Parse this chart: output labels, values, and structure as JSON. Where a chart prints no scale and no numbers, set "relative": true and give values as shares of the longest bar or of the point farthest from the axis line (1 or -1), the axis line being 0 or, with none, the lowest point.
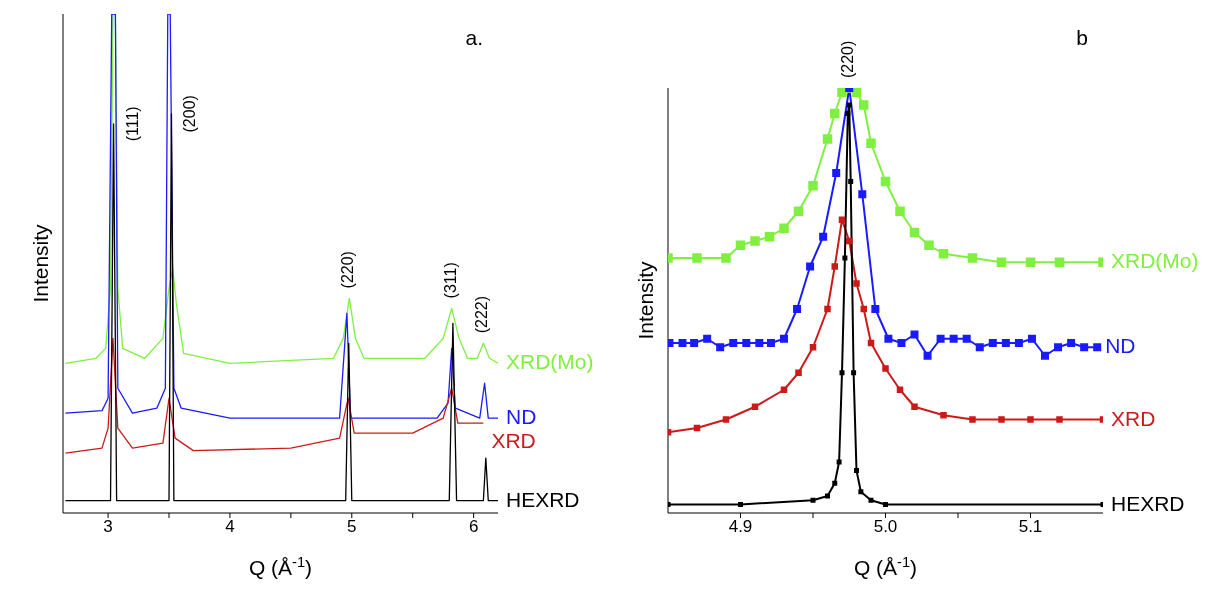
{
  "chart_data": [
    {
      "type": "line",
      "relative": true,
      "marker": "none",
      "xlabel": "Q  (Å$^{-1}$)",
      "ylabel": "Intensity",
      "xlim": [
        2.63,
        6.2
      ],
      "xticks": [
        3,
        {
          "value": 3.5,
          "label": null
        },
        4,
        {
          "value": 4.5,
          "label": null
        },
        5,
        {
          "value": 5.5,
          "label": null
        },
        6
      ],
      "annotations": [
        "a.",
        {
          "text": "(111)",
          "x": 3.045,
          "y": 0.78
        },
        {
          "text": "(200)",
          "x": 3.52,
          "y": 0.8
        },
        {
          "text": "(220)",
          "x": 4.98,
          "y": 0.43
        },
        {
          "text": "(311)",
          "x": 5.82,
          "y": 0.41
        },
        {
          "text": "(222)",
          "x": 6.08,
          "y": 0.34
        }
      ],
      "series": [
        {
          "name": "XRD(Mo)",
          "color": "#80f040",
          "x": [
            2.65,
            2.9,
            2.98,
            3.02,
            3.04,
            3.06,
            3.08,
            3.12,
            3.3,
            3.45,
            3.5,
            3.53,
            3.56,
            3.62,
            4.0,
            4.85,
            4.93,
            4.98,
            5.03,
            5.1,
            5.6,
            5.75,
            5.82,
            5.88,
            5.95,
            6.03,
            6.08,
            6.13,
            6.2
          ],
          "values": [
            0.3,
            0.31,
            0.33,
            0.45,
            1,
            1,
            0.45,
            0.33,
            0.31,
            0.35,
            0.45,
            0.49,
            0.42,
            0.32,
            0.3,
            0.31,
            0.35,
            0.43,
            0.35,
            0.31,
            0.31,
            0.35,
            0.41,
            0.35,
            0.31,
            0.31,
            0.34,
            0.31,
            0.3
          ]
        },
        {
          "name": "ND",
          "color": "#1a1aff",
          "x": [
            2.65,
            2.95,
            3.0,
            3.03,
            3.06,
            3.08,
            3.2,
            3.4,
            3.47,
            3.49,
            3.51,
            3.54,
            3.6,
            4.0,
            4.9,
            4.96,
            4.99,
            5.7,
            5.79,
            5.82,
            5.85,
            6.05,
            6.09,
            6.12,
            6.2
          ],
          "values": [
            0.2,
            0.205,
            0.23,
            1,
            1,
            0.25,
            0.2,
            0.21,
            0.25,
            1,
            1,
            0.25,
            0.21,
            0.19,
            0.19,
            0.4,
            0.19,
            0.19,
            0.22,
            0.33,
            0.21,
            0.19,
            0.26,
            0.19,
            0.19
          ]
        },
        {
          "name": "XRD",
          "color": "#cc1a1a",
          "x": [
            2.65,
            2.95,
            3.0,
            3.04,
            3.08,
            3.2,
            3.45,
            3.5,
            3.55,
            3.7,
            4.5,
            4.9,
            4.97,
            5.02,
            5.5,
            5.75,
            5.82,
            5.87,
            6.08
          ],
          "values": [
            0.12,
            0.13,
            0.17,
            0.35,
            0.17,
            0.13,
            0.14,
            0.23,
            0.15,
            0.125,
            0.13,
            0.15,
            0.23,
            0.16,
            0.16,
            0.19,
            0.25,
            0.18,
            0.18
          ]
        },
        {
          "name": "HEXRD",
          "color": "#000000",
          "x": [
            2.65,
            3.02,
            3.045,
            3.07,
            3.5,
            3.52,
            3.54,
            4.95,
            4.975,
            5.0,
            5.8,
            5.83,
            5.86,
            6.08,
            6.1,
            6.12,
            6.2
          ],
          "values": [
            0.025,
            0.025,
            0.78,
            0.025,
            0.025,
            0.8,
            0.025,
            0.025,
            0.34,
            0.025,
            0.025,
            0.38,
            0.025,
            0.025,
            0.11,
            0.025,
            0.025
          ]
        }
      ]
    },
    {
      "type": "line",
      "relative": true,
      "marker": "square",
      "xlabel": "Q  (Å$^{-1}$)",
      "ylabel": "Intensity",
      "xlim": [
        4.85,
        5.15
      ],
      "xticks": [
        4.9,
        {
          "value": 4.95,
          "label": null
        },
        {
          "value": 5,
          "label": "5.0"
        },
        {
          "value": 5.05,
          "label": null
        },
        5.1
      ],
      "annotations": [
        "b",
        {
          "text": "(220)",
          "x": 4.975,
          "y": 1
        }
      ],
      "series": [
        {
          "name": "XRD(Mo)",
          "color": "#80f040",
          "x": [
            4.85,
            4.87,
            4.89,
            4.9,
            4.91,
            4.92,
            4.93,
            4.94,
            4.95,
            4.96,
            4.965,
            4.97,
            4.975,
            4.98,
            4.985,
            4.99,
            5.0,
            5.01,
            5.02,
            5.03,
            5.04,
            5.06,
            5.08,
            5.1,
            5.12,
            5.15
          ],
          "values": [
            0.6,
            0.6,
            0.6,
            0.63,
            0.64,
            0.65,
            0.67,
            0.71,
            0.77,
            0.88,
            0.94,
            0.99,
            1,
            0.99,
            0.96,
            0.87,
            0.78,
            0.71,
            0.66,
            0.63,
            0.61,
            0.6,
            0.59,
            0.59,
            0.59,
            0.59
          ]
        },
        {
          "name": "ND",
          "color": "#1a1aff",
          "x": [
            4.851,
            4.86,
            4.868,
            4.877,
            4.886,
            4.895,
            4.904,
            4.913,
            4.921,
            4.93,
            4.939,
            4.948,
            4.957,
            4.966,
            4.975,
            4.984,
            4.993,
            5.002,
            5.011,
            5.02,
            5.029,
            5.038,
            5.047,
            5.056,
            5.065,
            5.074,
            5.083,
            5.092,
            5.101,
            5.11,
            5.119,
            5.128,
            5.137,
            5.146
          ],
          "values": [
            0.4,
            0.4,
            0.4,
            0.41,
            0.39,
            0.4,
            0.4,
            0.4,
            0.4,
            0.41,
            0.48,
            0.58,
            0.65,
            0.8,
            1,
            0.75,
            0.48,
            0.41,
            0.4,
            0.42,
            0.37,
            0.41,
            0.41,
            0.41,
            0.39,
            0.4,
            0.4,
            0.4,
            0.41,
            0.37,
            0.39,
            0.4,
            0.39,
            0.39
          ]
        },
        {
          "name": "XRD",
          "color": "#cc1a1a",
          "x": [
            4.85,
            4.87,
            4.89,
            4.91,
            4.93,
            4.94,
            4.95,
            4.96,
            4.965,
            4.97,
            4.975,
            4.98,
            4.985,
            4.99,
            5.0,
            5.01,
            5.02,
            5.04,
            5.06,
            5.08,
            5.1,
            5.12,
            5.15
          ],
          "values": [
            0.19,
            0.2,
            0.22,
            0.25,
            0.29,
            0.33,
            0.39,
            0.48,
            0.58,
            0.69,
            0.64,
            0.54,
            0.48,
            0.4,
            0.34,
            0.29,
            0.25,
            0.23,
            0.22,
            0.22,
            0.22,
            0.22,
            0.22
          ]
        },
        {
          "name": "HEXRD",
          "color": "#000000",
          "x": [
            4.85,
            4.9,
            4.95,
            4.96,
            4.965,
            4.968,
            4.97,
            4.972,
            4.974,
            4.975,
            4.976,
            4.978,
            4.98,
            4.983,
            4.99,
            5.0,
            5.15
          ],
          "values": [
            0.02,
            0.02,
            0.03,
            0.04,
            0.07,
            0.12,
            0.33,
            0.6,
            0.94,
            0.96,
            0.78,
            0.33,
            0.1,
            0.05,
            0.03,
            0.02,
            0.02
          ]
        }
      ]
    }
  ]
}
